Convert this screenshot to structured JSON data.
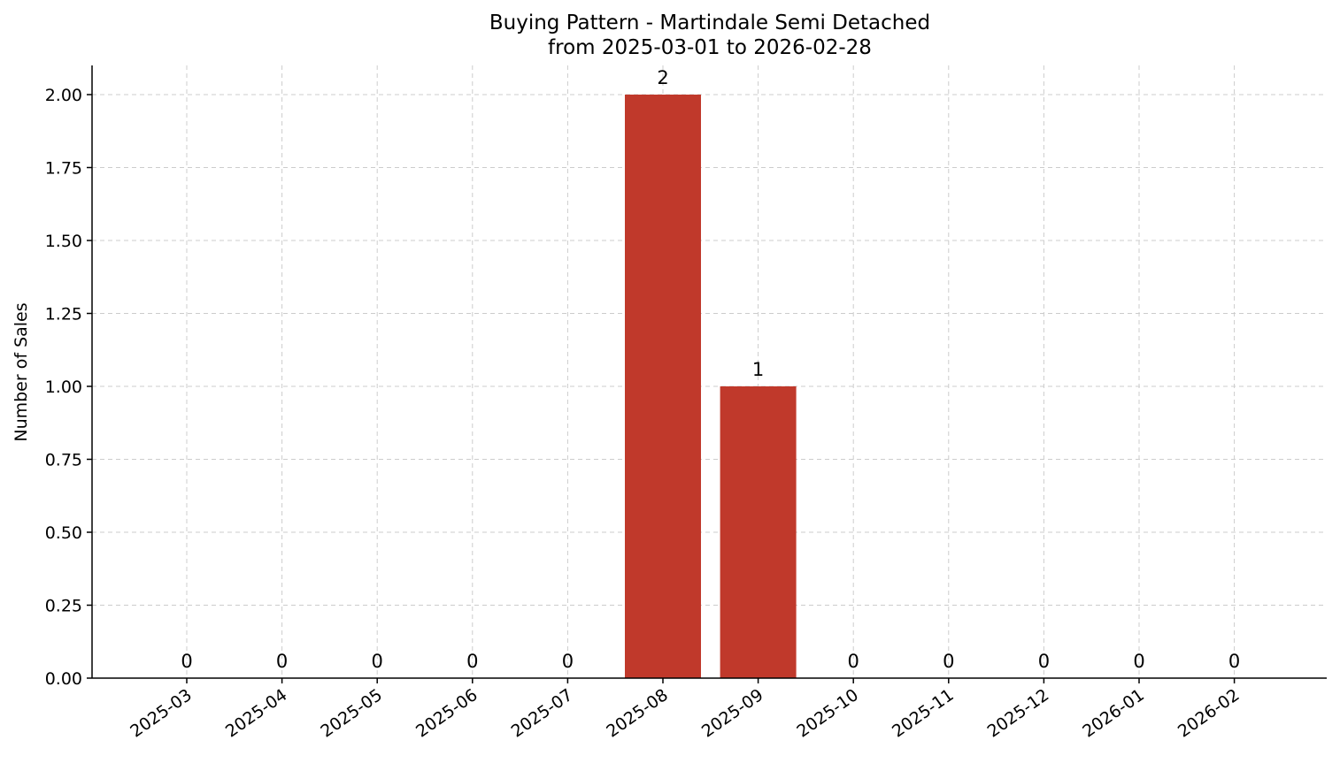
{
  "chart_data": {
    "type": "bar",
    "title": [
      "Buying Pattern - Martindale Semi Detached",
      "from 2025-03-01 to 2026-02-28"
    ],
    "xlabel": "",
    "ylabel": "Number of Sales",
    "categories": [
      "2025-03",
      "2025-04",
      "2025-05",
      "2025-06",
      "2025-07",
      "2025-08",
      "2025-09",
      "2025-10",
      "2025-11",
      "2025-12",
      "2026-01",
      "2026-02"
    ],
    "values": [
      0,
      0,
      0,
      0,
      0,
      2,
      1,
      0,
      0,
      0,
      0,
      0
    ],
    "data_labels": [
      "0",
      "0",
      "0",
      "0",
      "0",
      "2",
      "1",
      "0",
      "0",
      "0",
      "0",
      "0"
    ],
    "ylim": [
      0,
      2.1
    ],
    "yticks": [
      "0.00",
      "0.25",
      "0.50",
      "0.75",
      "1.00",
      "1.25",
      "1.50",
      "1.75",
      "2.00"
    ],
    "bar_color": "#c0392b",
    "grid": true
  }
}
